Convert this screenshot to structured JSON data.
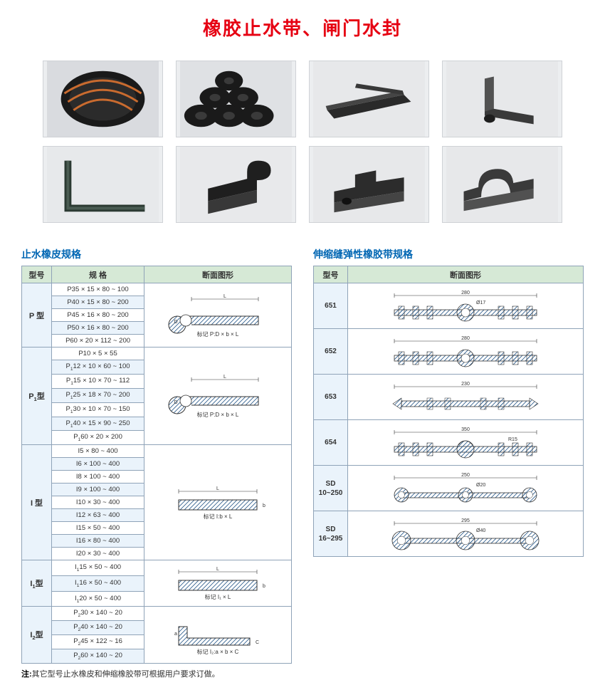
{
  "title": "橡胶止水带、闸门水封",
  "photo_row_count": 2,
  "photo_col_count": 4,
  "product_photos": [
    {
      "name": "coiled-waterstop-strip",
      "bg": "#dcdde0"
    },
    {
      "name": "rubber-rolls-stack",
      "bg": "#d8d9dc"
    },
    {
      "name": "flat-profile-sheet",
      "bg": "#e3e5e8"
    },
    {
      "name": "l-shaped-rubber-profile",
      "bg": "#e4e5e6"
    },
    {
      "name": "angle-frame-seal",
      "bg": "#e5e7e9"
    },
    {
      "name": "p-profile-block",
      "bg": "#e6e7e9"
    },
    {
      "name": "stepped-block-profile",
      "bg": "#e5e6e8"
    },
    {
      "name": "omega-channel-profile",
      "bg": "#e6e7e9"
    }
  ],
  "left_table": {
    "title": "止水橡皮规格",
    "headers": [
      "型号",
      "规 格",
      "断面图形"
    ],
    "col_widths": {
      "model": 42,
      "spec": 170,
      "diagram": 168
    },
    "header_bg": "#d6e9d6",
    "model_bg": "#eaf3fb",
    "alt_bg": "#eaf3fb",
    "border_color": "#8fa3b8",
    "groups": [
      {
        "model": "P 型",
        "specs": [
          "P35 × 15 × 80 ~ 100",
          "P40 × 15 × 80 ~ 200",
          "P45 × 16 × 80 ~ 200",
          "P50 × 16 × 80 ~ 200",
          "P60 × 20 × 112 ~ 200"
        ],
        "diagram_caption": "标记 P:D × b × L",
        "diagram_type": "p-profile"
      },
      {
        "model": "P₁型",
        "specs": [
          "P10 × 5 × 55",
          "P₁12 × 10 × 60 ~ 100",
          "P₁15 × 10 × 70 ~ 112",
          "P₁25 × 18 × 70 ~ 200",
          "P₁30 × 10 × 70 ~ 150",
          "P₁40 × 15 × 90 ~ 250",
          "P₁60 × 20 × 200"
        ],
        "diagram_caption": "标记 P:D × b × L",
        "diagram_type": "p-profile"
      },
      {
        "model": "I 型",
        "specs": [
          "I5 × 80 ~ 400",
          "I6 × 100 ~ 400",
          "I8 × 100 ~ 400",
          "I9 × 100 ~ 400",
          "I10 × 30 ~ 400",
          "I12 × 63 ~ 400",
          "I15 × 50 ~ 400",
          "I16 × 80 ~ 400",
          "I20 × 30 ~ 400"
        ],
        "diagram_caption": "标记 I:b × L",
        "diagram_type": "flat-strip"
      },
      {
        "model": "I₁型",
        "specs": [
          "I₁15 × 50 ~ 400",
          "I₁16 × 50 ~ 400",
          "I₁20 × 50 ~ 400"
        ],
        "diagram_caption": "标记 I₁ × L",
        "diagram_type": "flat-strip"
      },
      {
        "model": "I₂型",
        "specs": [
          "P₂30 × 140 ~ 20",
          "P₂40 × 140 ~ 20",
          "P₂45 × 122 ~ 16",
          "P₂60 × 140 ~ 20"
        ],
        "diagram_caption": "标记 I₂:a × b × C",
        "diagram_type": "l-angle"
      }
    ]
  },
  "right_table": {
    "title": "伸缩缝弹性橡胶带规格",
    "headers": [
      "型号",
      "断面图形"
    ],
    "col_widths": {
      "model": 48,
      "diagram": "auto"
    },
    "header_bg": "#d6e9d6",
    "model_bg": "#eaf3fb",
    "border_color": "#8fa3b8",
    "rows": [
      {
        "model": "651",
        "width_label": "280",
        "dia_label": "Ø17",
        "type": "ribbed-center-bulb"
      },
      {
        "model": "652",
        "width_label": "280",
        "type": "ribbed-center-bulb-open"
      },
      {
        "model": "653",
        "width_label": "230",
        "type": "flat-crosshatch-ends"
      },
      {
        "model": "654",
        "width_label": "350",
        "extra_label": "R15",
        "type": "ribbed-center-arc"
      },
      {
        "model": "SD\n10~250",
        "width_label": "250",
        "dia_label": "Ø20",
        "type": "three-bulb"
      },
      {
        "model": "SD\n16~295",
        "width_label": "295",
        "dia_label": "Ø40",
        "type": "three-bulb-large"
      }
    ]
  },
  "footnote_prefix": "注:",
  "footnote_text": "其它型号止水橡皮和伸缩橡胶带可根据用户要求订做。",
  "colors": {
    "title": "#e60012",
    "section_title": "#0066b3",
    "table_border": "#8fa3b8",
    "header_bg": "#d6e9d6",
    "model_bg": "#eaf3fb",
    "page_bg": "#ffffff",
    "hatch": "#2a5a8a"
  }
}
